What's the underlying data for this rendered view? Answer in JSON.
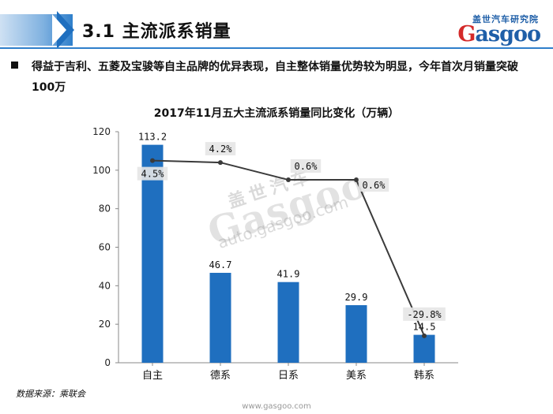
{
  "header": {
    "section_title": "3.1 主流派系销量",
    "logo_cn": "盖世汽车研究院",
    "logo_en_first": "G",
    "logo_en_rest": "asgoo"
  },
  "bullet": {
    "text": "得益于吉利、五菱及宝骏等自主品牌的优异表现，自主整体销量优势较为明显，今年首次月销量突破100万"
  },
  "watermark": {
    "cn": "盖世汽车",
    "en": "Gasgoo",
    "url": "auto.gasgoo.com"
  },
  "chart_data": {
    "type": "bar",
    "title": "2017年11月五大主流派系销量同比变化（万辆）",
    "categories": [
      "自主",
      "德系",
      "日系",
      "美系",
      "韩系"
    ],
    "values": [
      113.2,
      46.7,
      41.9,
      29.9,
      14.5
    ],
    "value_labels": [
      "113.2",
      "46.7",
      "41.9",
      "29.9",
      "14.5"
    ],
    "line_series": {
      "values": [
        105,
        104,
        95,
        95,
        14
      ],
      "labels": [
        "4.5%",
        "4.2%",
        "0.6%",
        "0.6%",
        "-29.8%"
      ]
    },
    "ylim": [
      0,
      120
    ],
    "yticks": [
      0,
      20,
      40,
      60,
      80,
      100,
      120
    ],
    "bar_color": "#1f6fbf",
    "line_color": "#3a3a3a",
    "grid": false,
    "legend": "none"
  },
  "footer": {
    "source": "数据来源：乘联会",
    "url": "www.gasgoo.com"
  }
}
